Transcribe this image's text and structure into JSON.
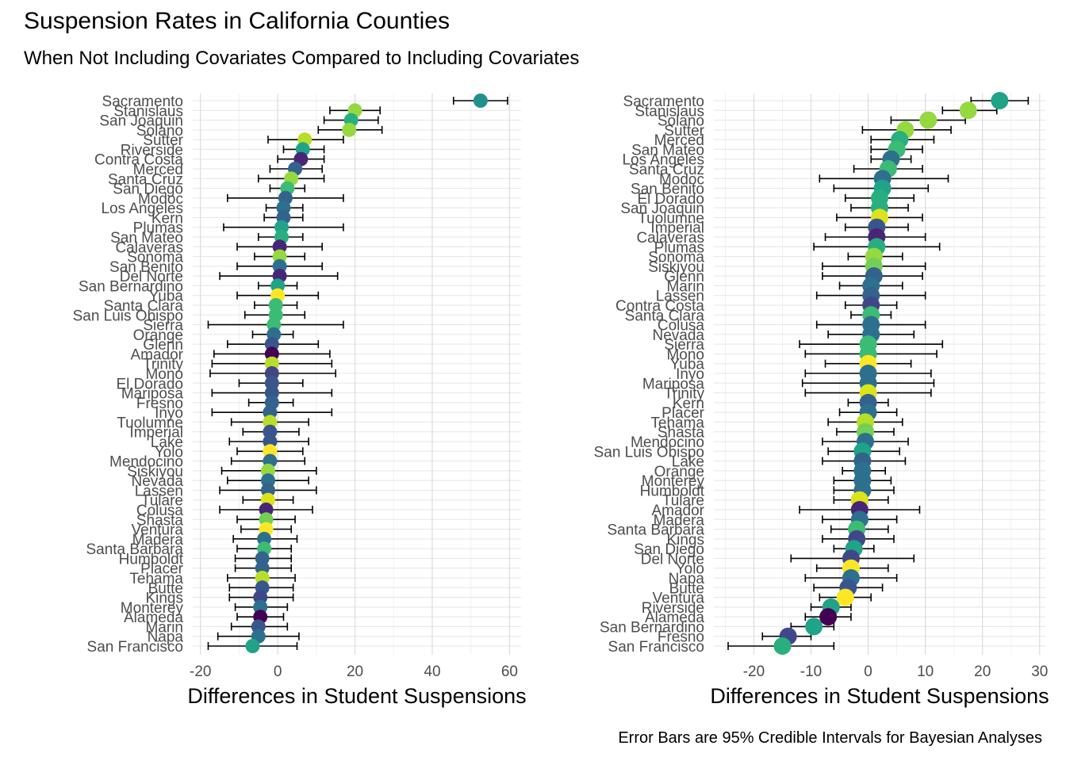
{
  "title": "Suspension Rates in California Counties",
  "subtitle": "When Not Including Covariates Compared to Including Covariates",
  "caption": "Error Bars are 95% Credible Intervals for Bayesian Analyses",
  "chart_data": [
    {
      "type": "scatter",
      "panel": "left",
      "xlabel": "Differences in Student Suspensions",
      "ylabel": "",
      "xlim": [
        -22,
        63
      ],
      "xticks": [
        -20,
        0,
        20,
        40,
        60
      ],
      "grid": true,
      "points": [
        {
          "county": "Sacramento",
          "x": 52.5,
          "lo": 45.5,
          "hi": 59.5,
          "color": "#21908d"
        },
        {
          "county": "Stanislaus",
          "x": 20,
          "lo": 13.5,
          "hi": 26.5,
          "color": "#95d840"
        },
        {
          "county": "San Joaquin",
          "x": 19,
          "lo": 12,
          "hi": 26,
          "color": "#29af7f"
        },
        {
          "county": "Solano",
          "x": 18.5,
          "lo": 10.5,
          "hi": 27,
          "color": "#95d840"
        },
        {
          "county": "Sutter",
          "x": 7,
          "lo": -2.5,
          "hi": 17,
          "color": "#b8de29"
        },
        {
          "county": "Riverside",
          "x": 6.5,
          "lo": 1.5,
          "hi": 12,
          "color": "#20a387"
        },
        {
          "county": "Contra Costa",
          "x": 6,
          "lo": 0,
          "hi": 12,
          "color": "#482677"
        },
        {
          "county": "Merced",
          "x": 4.5,
          "lo": -2,
          "hi": 11.5,
          "color": "#33638d"
        },
        {
          "county": "Santa Cruz",
          "x": 3.5,
          "lo": -5,
          "hi": 12,
          "color": "#95d840"
        },
        {
          "county": "San Diego",
          "x": 2.5,
          "lo": -2,
          "hi": 7,
          "color": "#3cbb75"
        },
        {
          "county": "Modoc",
          "x": 2,
          "lo": -13,
          "hi": 17,
          "color": "#33638d"
        },
        {
          "county": "Los Angeles",
          "x": 1.5,
          "lo": -3,
          "hi": 6.5,
          "color": "#2d708e"
        },
        {
          "county": "Kern",
          "x": 1.5,
          "lo": -3.5,
          "hi": 6.5,
          "color": "#33638d"
        },
        {
          "county": "Plumas",
          "x": 1,
          "lo": -14,
          "hi": 17,
          "color": "#20a387"
        },
        {
          "county": "San Mateo",
          "x": 1,
          "lo": -5,
          "hi": 6.5,
          "color": "#29af7f"
        },
        {
          "county": "Calaveras",
          "x": 0.5,
          "lo": -10.5,
          "hi": 11.5,
          "color": "#482677"
        },
        {
          "county": "Sonoma",
          "x": 0.5,
          "lo": -6,
          "hi": 7,
          "color": "#95d840"
        },
        {
          "county": "San Benito",
          "x": 0.5,
          "lo": -10.5,
          "hi": 11.5,
          "color": "#2d708e"
        },
        {
          "county": "Del Norte",
          "x": 0.5,
          "lo": -15,
          "hi": 15.5,
          "color": "#482677"
        },
        {
          "county": "San Bernardino",
          "x": 0,
          "lo": -5,
          "hi": 5,
          "color": "#20a387"
        },
        {
          "county": "Yuba",
          "x": 0,
          "lo": -10.5,
          "hi": 10.5,
          "color": "#fde725"
        },
        {
          "county": "Santa Clara",
          "x": -0.5,
          "lo": -6,
          "hi": 5,
          "color": "#3cbb75"
        },
        {
          "county": "San Luis Obispo",
          "x": -0.5,
          "lo": -8.5,
          "hi": 7,
          "color": "#3cbb75"
        },
        {
          "county": "Sierra",
          "x": -1,
          "lo": -18,
          "hi": 17,
          "color": "#3cbb75"
        },
        {
          "county": "Orange",
          "x": -1,
          "lo": -6.5,
          "hi": 4,
          "color": "#2d708e"
        },
        {
          "county": "Glenn",
          "x": -1.5,
          "lo": -13,
          "hi": 10.5,
          "color": "#39568c"
        },
        {
          "county": "Amador",
          "x": -1.5,
          "lo": -16.5,
          "hi": 13.5,
          "color": "#440154"
        },
        {
          "county": "Trinity",
          "x": -1.5,
          "lo": -17,
          "hi": 14,
          "color": "#b8de29"
        },
        {
          "county": "Mono",
          "x": -1.5,
          "lo": -17.5,
          "hi": 15,
          "color": "#404788"
        },
        {
          "county": "El Dorado",
          "x": -1.5,
          "lo": -10,
          "hi": 6.5,
          "color": "#39568c"
        },
        {
          "county": "Mariposa",
          "x": -1.5,
          "lo": -17,
          "hi": 14,
          "color": "#39568c"
        },
        {
          "county": "Fresno",
          "x": -1.5,
          "lo": -7.5,
          "hi": 4,
          "color": "#33638d"
        },
        {
          "county": "Inyo",
          "x": -2,
          "lo": -17,
          "hi": 14,
          "color": "#33638d"
        },
        {
          "county": "Tuolumne",
          "x": -2,
          "lo": -12,
          "hi": 8,
          "color": "#b8de29"
        },
        {
          "county": "Imperial",
          "x": -2,
          "lo": -9,
          "hi": 5.5,
          "color": "#39568c"
        },
        {
          "county": "Lake",
          "x": -2,
          "lo": -12.5,
          "hi": 8,
          "color": "#39568c"
        },
        {
          "county": "Yolo",
          "x": -2,
          "lo": -10.5,
          "hi": 6.5,
          "color": "#fde725"
        },
        {
          "county": "Mendocino",
          "x": -2,
          "lo": -12,
          "hi": 7,
          "color": "#2d708e"
        },
        {
          "county": "Siskiyou",
          "x": -2.5,
          "lo": -14.5,
          "hi": 10,
          "color": "#95d840"
        },
        {
          "county": "Nevada",
          "x": -2.5,
          "lo": -13,
          "hi": 8,
          "color": "#2d708e"
        },
        {
          "county": "Lassen",
          "x": -2.5,
          "lo": -15,
          "hi": 10,
          "color": "#33638d"
        },
        {
          "county": "Tulare",
          "x": -2.5,
          "lo": -9,
          "hi": 4,
          "color": "#dce319"
        },
        {
          "county": "Colusa",
          "x": -3,
          "lo": -15,
          "hi": 9,
          "color": "#482677"
        },
        {
          "county": "Shasta",
          "x": -3,
          "lo": -10.5,
          "hi": 4.5,
          "color": "#73d055"
        },
        {
          "county": "Ventura",
          "x": -3,
          "lo": -9.5,
          "hi": 3.5,
          "color": "#fde725"
        },
        {
          "county": "Madera",
          "x": -3.5,
          "lo": -11.5,
          "hi": 5,
          "color": "#2d708e"
        },
        {
          "county": "Santa Barbara",
          "x": -3.5,
          "lo": -10.5,
          "hi": 3.5,
          "color": "#3cbb75"
        },
        {
          "county": "Humboldt",
          "x": -4,
          "lo": -11,
          "hi": 3.5,
          "color": "#33638d"
        },
        {
          "county": "Placer",
          "x": -4,
          "lo": -11,
          "hi": 3.5,
          "color": "#33638d"
        },
        {
          "county": "Tehama",
          "x": -4,
          "lo": -13,
          "hi": 4.5,
          "color": "#b8de29"
        },
        {
          "county": "Butte",
          "x": -4,
          "lo": -12.5,
          "hi": 4,
          "color": "#39568c"
        },
        {
          "county": "Kings",
          "x": -4.5,
          "lo": -12.5,
          "hi": 4,
          "color": "#404788"
        },
        {
          "county": "Monterey",
          "x": -4.5,
          "lo": -11,
          "hi": 2.5,
          "color": "#2d708e"
        },
        {
          "county": "Alameda",
          "x": -4.5,
          "lo": -10.5,
          "hi": 1.5,
          "color": "#440154"
        },
        {
          "county": "Marin",
          "x": -5,
          "lo": -12,
          "hi": 2.5,
          "color": "#39568c"
        },
        {
          "county": "Napa",
          "x": -5,
          "lo": -15.5,
          "hi": 5.5,
          "color": "#2d708e"
        },
        {
          "county": "San Francisco",
          "x": -6.5,
          "lo": -18,
          "hi": 5,
          "color": "#20a387"
        }
      ]
    },
    {
      "type": "scatter",
      "panel": "right",
      "xlabel": "Differences in Student Suspensions",
      "ylabel": "",
      "xlim": [
        -27,
        31
      ],
      "xticks": [
        -20,
        -10,
        0,
        10,
        20,
        30
      ],
      "grid": true,
      "points": [
        {
          "county": "Sacramento",
          "x": 23,
          "lo": 18,
          "hi": 28,
          "color": "#20a387"
        },
        {
          "county": "Stanislaus",
          "x": 17.5,
          "lo": 13,
          "hi": 22.5,
          "color": "#95d840"
        },
        {
          "county": "Solano",
          "x": 10.5,
          "lo": 4,
          "hi": 17,
          "color": "#95d840"
        },
        {
          "county": "Sutter",
          "x": 6.5,
          "lo": -1,
          "hi": 14.5,
          "color": "#95d840"
        },
        {
          "county": "Merced",
          "x": 5.5,
          "lo": 0.5,
          "hi": 11.5,
          "color": "#29af7f"
        },
        {
          "county": "San Mateo",
          "x": 5,
          "lo": 0.5,
          "hi": 9.5,
          "color": "#3cbb75"
        },
        {
          "county": "Los Angeles",
          "x": 4,
          "lo": 0.5,
          "hi": 7.5,
          "color": "#2d708e"
        },
        {
          "county": "Santa Cruz",
          "x": 3.5,
          "lo": -2.5,
          "hi": 9.5,
          "color": "#3cbb75"
        },
        {
          "county": "Modoc",
          "x": 2.5,
          "lo": -8.5,
          "hi": 14,
          "color": "#2d708e"
        },
        {
          "county": "San Benito",
          "x": 2.5,
          "lo": -6,
          "hi": 10.5,
          "color": "#20a387"
        },
        {
          "county": "El Dorado",
          "x": 2,
          "lo": -4,
          "hi": 8,
          "color": "#29af7f"
        },
        {
          "county": "San Joaquin",
          "x": 2,
          "lo": -3,
          "hi": 7,
          "color": "#29af7f"
        },
        {
          "county": "Tuolumne",
          "x": 2,
          "lo": -5.5,
          "hi": 9.5,
          "color": "#dce319"
        },
        {
          "county": "Imperial",
          "x": 1.5,
          "lo": -4,
          "hi": 7,
          "color": "#39568c"
        },
        {
          "county": "Calaveras",
          "x": 1.5,
          "lo": -7.5,
          "hi": 10,
          "color": "#482677"
        },
        {
          "county": "Plumas",
          "x": 1.5,
          "lo": -9.5,
          "hi": 12.5,
          "color": "#29af7f"
        },
        {
          "county": "Sonoma",
          "x": 1,
          "lo": -3.5,
          "hi": 6,
          "color": "#95d840"
        },
        {
          "county": "Siskiyou",
          "x": 1,
          "lo": -8,
          "hi": 10,
          "color": "#73d055"
        },
        {
          "county": "Glenn",
          "x": 1,
          "lo": -8,
          "hi": 9.5,
          "color": "#33638d"
        },
        {
          "county": "Marin",
          "x": 0.5,
          "lo": -5,
          "hi": 6,
          "color": "#2d708e"
        },
        {
          "county": "Lassen",
          "x": 0.5,
          "lo": -9,
          "hi": 10,
          "color": "#33638d"
        },
        {
          "county": "Contra Costa",
          "x": 0.5,
          "lo": -4,
          "hi": 5,
          "color": "#404788"
        },
        {
          "county": "Santa Clara",
          "x": 0.5,
          "lo": -3,
          "hi": 4,
          "color": "#3cbb75"
        },
        {
          "county": "Colusa",
          "x": 0.5,
          "lo": -9,
          "hi": 10,
          "color": "#2d708e"
        },
        {
          "county": "Nevada",
          "x": 0.5,
          "lo": -7,
          "hi": 8,
          "color": "#2d708e"
        },
        {
          "county": "Sierra",
          "x": 0,
          "lo": -12,
          "hi": 13,
          "color": "#3cbb75"
        },
        {
          "county": "Mono",
          "x": 0,
          "lo": -11,
          "hi": 12,
          "color": "#3cbb75"
        },
        {
          "county": "Yuba",
          "x": 0,
          "lo": -7.5,
          "hi": 7.5,
          "color": "#fde725"
        },
        {
          "county": "Inyo",
          "x": 0,
          "lo": -11,
          "hi": 11,
          "color": "#2d708e"
        },
        {
          "county": "Mariposa",
          "x": 0,
          "lo": -11.5,
          "hi": 11.5,
          "color": "#2d708e"
        },
        {
          "county": "Trinity",
          "x": 0,
          "lo": -11,
          "hi": 11,
          "color": "#dce319"
        },
        {
          "county": "Kern",
          "x": 0,
          "lo": -3.5,
          "hi": 3.5,
          "color": "#33638d"
        },
        {
          "county": "Placer",
          "x": 0,
          "lo": -5,
          "hi": 5,
          "color": "#2d708e"
        },
        {
          "county": "Tehama",
          "x": -0.5,
          "lo": -7,
          "hi": 6,
          "color": "#b8de29"
        },
        {
          "county": "Shasta",
          "x": -0.5,
          "lo": -5.5,
          "hi": 4.5,
          "color": "#73d055"
        },
        {
          "county": "Mendocino",
          "x": -0.5,
          "lo": -8,
          "hi": 7,
          "color": "#2d708e"
        },
        {
          "county": "San Luis Obispo",
          "x": -1,
          "lo": -7,
          "hi": 5.5,
          "color": "#20a387"
        },
        {
          "county": "Lake",
          "x": -1,
          "lo": -8,
          "hi": 6.5,
          "color": "#33638d"
        },
        {
          "county": "Orange",
          "x": -1,
          "lo": -4.5,
          "hi": 3,
          "color": "#2d708e"
        },
        {
          "county": "Monterey",
          "x": -1,
          "lo": -6,
          "hi": 4,
          "color": "#2d708e"
        },
        {
          "county": "Humboldt",
          "x": -1,
          "lo": -6,
          "hi": 4.5,
          "color": "#2d708e"
        },
        {
          "county": "Tulare",
          "x": -1.5,
          "lo": -6,
          "hi": 3.5,
          "color": "#dce319"
        },
        {
          "county": "Amador",
          "x": -1.5,
          "lo": -12,
          "hi": 9,
          "color": "#482677"
        },
        {
          "county": "Madera",
          "x": -1.5,
          "lo": -8,
          "hi": 5,
          "color": "#2d708e"
        },
        {
          "county": "Santa Barbara",
          "x": -2,
          "lo": -6.5,
          "hi": 3.5,
          "color": "#3cbb75"
        },
        {
          "county": "Kings",
          "x": -2,
          "lo": -8,
          "hi": 4.5,
          "color": "#404788"
        },
        {
          "county": "San Diego",
          "x": -2.5,
          "lo": -6,
          "hi": 1,
          "color": "#20a387"
        },
        {
          "county": "Del Norte",
          "x": -3,
          "lo": -13.5,
          "hi": 8,
          "color": "#404788"
        },
        {
          "county": "Yolo",
          "x": -3,
          "lo": -9,
          "hi": 3.5,
          "color": "#fde725"
        },
        {
          "county": "Napa",
          "x": -3,
          "lo": -11,
          "hi": 5,
          "color": "#2d708e"
        },
        {
          "county": "Butte",
          "x": -3.5,
          "lo": -9.5,
          "hi": 2.5,
          "color": "#39568c"
        },
        {
          "county": "Ventura",
          "x": -4,
          "lo": -8.5,
          "hi": 0.5,
          "color": "#fde725"
        },
        {
          "county": "Riverside",
          "x": -6.5,
          "lo": -10,
          "hi": -3,
          "color": "#20a387"
        },
        {
          "county": "Alameda",
          "x": -7,
          "lo": -11,
          "hi": -3,
          "color": "#440154"
        },
        {
          "county": "San Bernardino",
          "x": -9.5,
          "lo": -13.5,
          "hi": -6,
          "color": "#20a387"
        },
        {
          "county": "Fresno",
          "x": -14,
          "lo": -18.5,
          "hi": -10,
          "color": "#404788"
        },
        {
          "county": "San Francisco",
          "x": -15,
          "lo": -24.5,
          "hi": -6,
          "color": "#29af7f"
        }
      ]
    }
  ]
}
